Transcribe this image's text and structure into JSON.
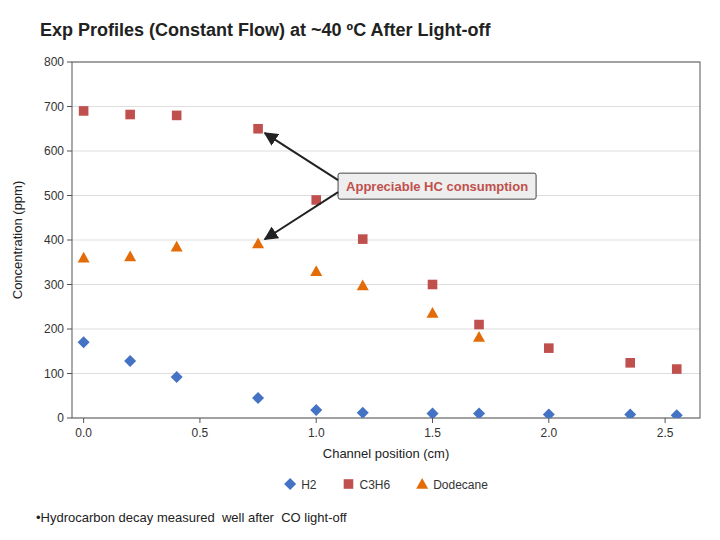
{
  "chart_data": {
    "type": "scatter",
    "title": "Exp Profiles (Constant Flow) at ~40 ºC After Light-off",
    "xlabel": "Channel position (cm)",
    "ylabel": "Concentration (ppm)",
    "xlim": [
      -0.05,
      2.65
    ],
    "ylim": [
      0,
      800
    ],
    "xticks": [
      {
        "value": 0,
        "label": "0.0"
      },
      0.5,
      {
        "value": 1,
        "label": "1.0"
      },
      1.5,
      {
        "value": 2,
        "label": "2.0"
      },
      2.5
    ],
    "yticks": [
      0,
      100,
      200,
      300,
      400,
      500,
      600,
      700,
      800
    ],
    "grid": true,
    "legend": "bottom",
    "series": [
      {
        "name": "H2",
        "color": "#4472C4",
        "marker": "diamond",
        "x": [
          0,
          0.2,
          0.4,
          0.75,
          1.0,
          1.2,
          1.5,
          1.7,
          2.0,
          2.35,
          2.55
        ],
        "values": [
          170,
          128,
          92,
          45,
          18,
          12,
          10,
          10,
          8,
          8,
          6
        ]
      },
      {
        "name": "C3H6",
        "color": "#C0504D",
        "marker": "square",
        "x": [
          0,
          0.2,
          0.4,
          0.75,
          1.0,
          1.2,
          1.5,
          1.7,
          2.0,
          2.35,
          2.55
        ],
        "values": [
          690,
          682,
          680,
          650,
          490,
          402,
          300,
          210,
          157,
          124,
          110
        ]
      },
      {
        "name": "Dodecane",
        "color": "#E36C09",
        "marker": "triangle",
        "x": [
          0,
          0.2,
          0.4,
          0.75,
          1.0,
          1.2,
          1.5,
          1.7
        ],
        "values": [
          360,
          363,
          385,
          392,
          330,
          298,
          236,
          182
        ]
      }
    ],
    "annotations": [
      "Appreciable HC consumption"
    ],
    "footer": "•Hydrocarbon decay measured  well after  CO light-off"
  }
}
